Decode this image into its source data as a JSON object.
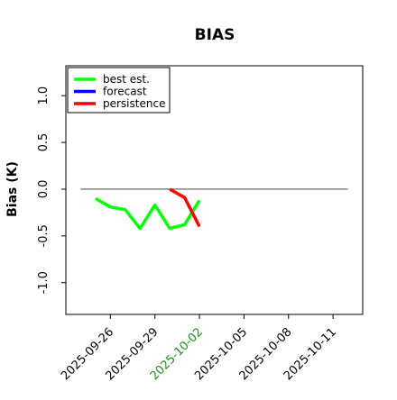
{
  "chart_data": {
    "type": "line",
    "title": "BIAS",
    "y_label": "Bias (K)",
    "xlim": [
      "2025-09-23",
      "2025-10-13"
    ],
    "xticks": [
      "2025-09-26",
      "2025-09-29",
      "2025-10-02",
      "2025-10-05",
      "2025-10-08",
      "2025-10-11"
    ],
    "xtick_label_colors": [
      "#000000",
      "#000000",
      "#228b22",
      "#000000",
      "#000000",
      "#000000"
    ],
    "ylim": [
      -1.34,
      1.32
    ],
    "yticks": [
      {
        "value": -1,
        "label": "-1.0"
      },
      {
        "value": -0.5,
        "label": "-0.5"
      },
      {
        "value": 0,
        "label": "0.0"
      },
      0.5,
      {
        "value": 1,
        "label": "1.0"
      }
    ],
    "reference_line": {
      "y": 0,
      "x": [
        "2025-09-24",
        "2025-10-12"
      ],
      "color": "#555555"
    },
    "grid": false,
    "legend": "upper left",
    "series": [
      {
        "name": "best est.",
        "color": "#00ff00",
        "x": [
          "2025-09-25",
          "2025-09-26",
          "2025-09-27",
          "2025-09-28",
          "2025-09-29",
          "2025-09-30",
          "2025-10-01",
          "2025-10-02"
        ],
        "values": [
          -0.1,
          -0.19,
          -0.22,
          -0.42,
          -0.17,
          -0.42,
          -0.38,
          -0.12
        ]
      },
      {
        "name": "forecast",
        "color": "#0000ff",
        "x": [],
        "values": []
      },
      {
        "name": "persistence",
        "color": "#ff0000",
        "x": [
          "2025-09-30",
          "2025-10-01",
          "2025-10-02"
        ],
        "values": [
          0.0,
          -0.09,
          -0.4
        ]
      }
    ]
  }
}
